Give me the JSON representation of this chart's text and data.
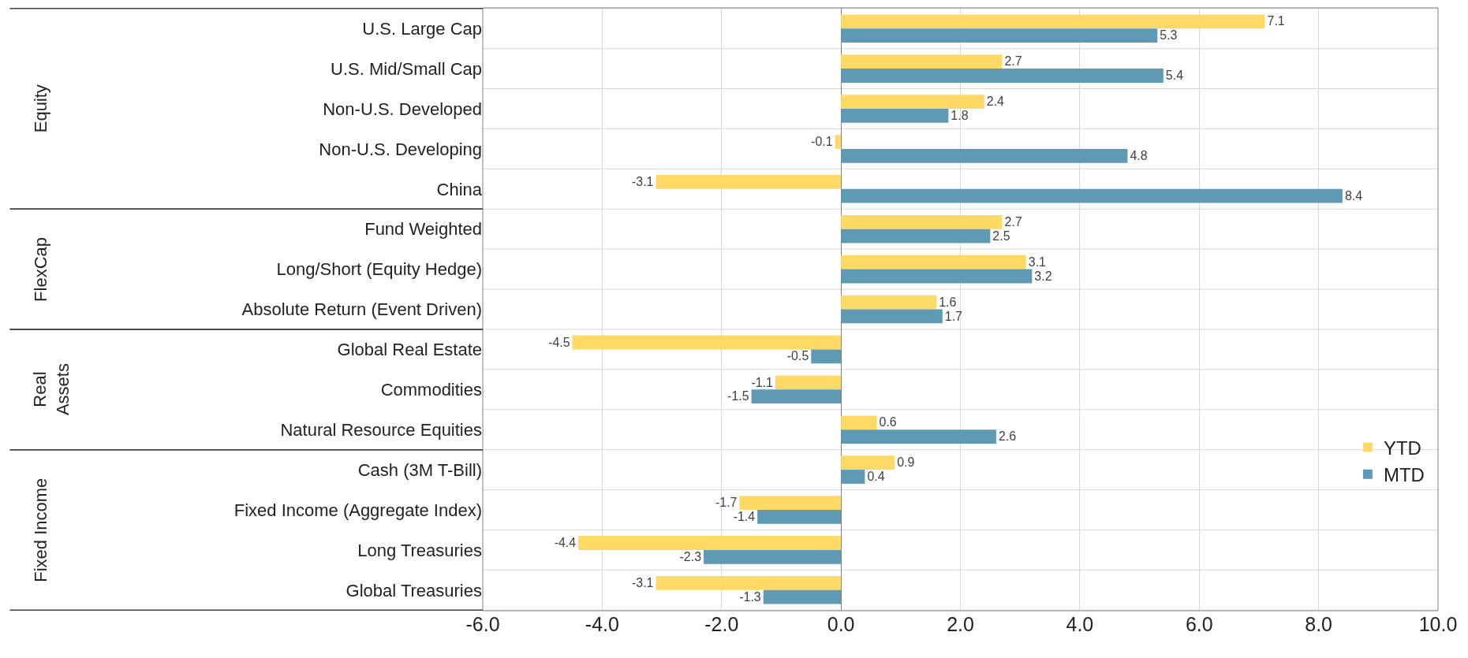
{
  "chart_data": {
    "type": "bar",
    "orientation": "horizontal",
    "categories": [
      "U.S. Large Cap",
      "U.S. Mid/Small Cap",
      "Non-U.S. Developed",
      "Non-U.S. Developing",
      "China",
      "Fund Weighted",
      "Long/Short (Equity Hedge)",
      "Absolute Return (Event Driven)",
      "Global Real Estate",
      "Commodities",
      "Natural Resource Equities",
      "Cash (3M T-Bill)",
      "Fixed Income (Aggregate Index)",
      "Long Treasuries",
      "Global Treasuries"
    ],
    "series": [
      {
        "name": "YTD",
        "color": "#ffd966",
        "values": [
          7.1,
          2.7,
          2.4,
          -0.1,
          -3.1,
          2.7,
          3.1,
          1.6,
          -4.5,
          -1.1,
          0.6,
          0.9,
          -1.7,
          -4.4,
          -3.1
        ]
      },
      {
        "name": "MTD",
        "color": "#5f9ab5",
        "values": [
          5.3,
          5.4,
          1.8,
          4.8,
          8.4,
          2.5,
          3.2,
          1.7,
          -0.5,
          -1.5,
          2.6,
          0.4,
          -1.4,
          -2.3,
          -1.3
        ]
      }
    ],
    "xlim": [
      -6,
      10
    ],
    "xticks": [
      {
        "value": -6,
        "label": "-6.0"
      },
      {
        "value": -4,
        "label": "-4.0"
      },
      {
        "value": -2,
        "label": "-2.0"
      },
      {
        "value": 0,
        "label": "0.0"
      },
      {
        "value": 2,
        "label": "2.0"
      },
      {
        "value": 4,
        "label": "4.0"
      },
      {
        "value": 6,
        "label": "6.0"
      },
      {
        "value": 8,
        "label": "8.0"
      },
      {
        "value": 10,
        "label": "10.0"
      }
    ],
    "annotations": [
      "Equity",
      "FlexCap",
      "Real\nAssets",
      "Fixed Income"
    ],
    "data_labels": true,
    "grid": "x",
    "legend": "bottom right"
  }
}
